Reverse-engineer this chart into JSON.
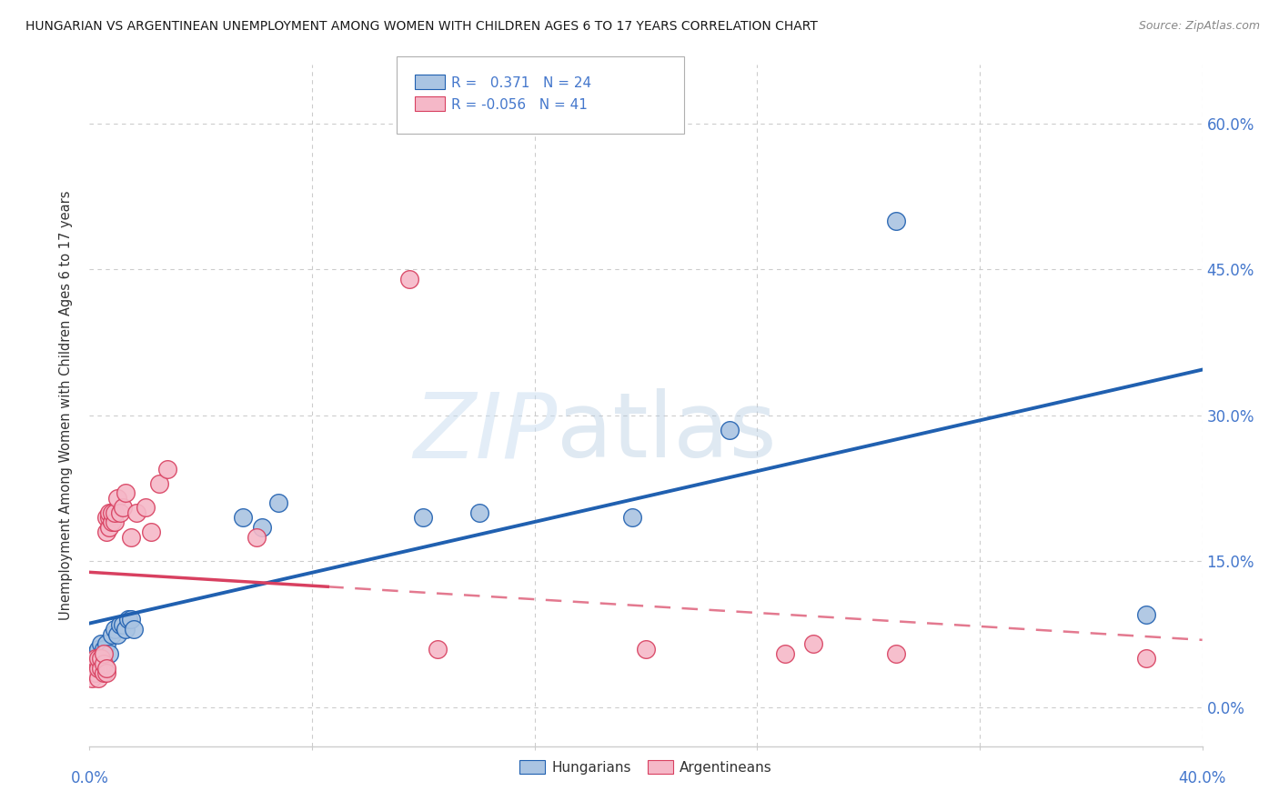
{
  "title": "HUNGARIAN VS ARGENTINEAN UNEMPLOYMENT AMONG WOMEN WITH CHILDREN AGES 6 TO 17 YEARS CORRELATION CHART",
  "source": "Source: ZipAtlas.com",
  "ylabel": "Unemployment Among Women with Children Ages 6 to 17 years",
  "ytick_values": [
    0.0,
    0.15,
    0.3,
    0.45,
    0.6
  ],
  "xlim": [
    0.0,
    0.4
  ],
  "ylim": [
    -0.04,
    0.66
  ],
  "legend_label1": "Hungarians",
  "legend_label2": "Argentineans",
  "r_hungarian": 0.371,
  "n_hungarian": 24,
  "r_argentinean": -0.056,
  "n_argentinean": 41,
  "color_hungarian": "#aac4e2",
  "color_argentinean": "#f5b8c8",
  "color_hungarian_line": "#2060b0",
  "color_argentinean_line": "#d84060",
  "color_axis_labels": "#4477cc",
  "hungarian_x": [
    0.002,
    0.003,
    0.004,
    0.005,
    0.006,
    0.007,
    0.008,
    0.009,
    0.01,
    0.011,
    0.012,
    0.013,
    0.014,
    0.015,
    0.016,
    0.055,
    0.062,
    0.068,
    0.12,
    0.14,
    0.195,
    0.23,
    0.29,
    0.38
  ],
  "hungarian_y": [
    0.055,
    0.06,
    0.065,
    0.06,
    0.065,
    0.055,
    0.075,
    0.08,
    0.075,
    0.085,
    0.085,
    0.08,
    0.09,
    0.09,
    0.08,
    0.195,
    0.185,
    0.21,
    0.195,
    0.2,
    0.195,
    0.285,
    0.5,
    0.095
  ],
  "argentinean_x": [
    0.001,
    0.001,
    0.002,
    0.002,
    0.003,
    0.003,
    0.003,
    0.004,
    0.004,
    0.005,
    0.005,
    0.005,
    0.006,
    0.006,
    0.006,
    0.006,
    0.007,
    0.007,
    0.007,
    0.008,
    0.008,
    0.009,
    0.009,
    0.01,
    0.011,
    0.012,
    0.013,
    0.015,
    0.017,
    0.02,
    0.022,
    0.025,
    0.028,
    0.06,
    0.115,
    0.125,
    0.2,
    0.25,
    0.26,
    0.29,
    0.38
  ],
  "argentinean_y": [
    0.03,
    0.04,
    0.035,
    0.05,
    0.03,
    0.04,
    0.05,
    0.04,
    0.05,
    0.035,
    0.045,
    0.055,
    0.035,
    0.04,
    0.18,
    0.195,
    0.185,
    0.195,
    0.2,
    0.19,
    0.2,
    0.19,
    0.2,
    0.215,
    0.2,
    0.205,
    0.22,
    0.175,
    0.2,
    0.205,
    0.18,
    0.23,
    0.245,
    0.175,
    0.44,
    0.06,
    0.06,
    0.055,
    0.065,
    0.055,
    0.05
  ],
  "watermark_zip": "ZIP",
  "watermark_atlas": "atlas",
  "grid_color": "#cccccc",
  "background_color": "#ffffff"
}
